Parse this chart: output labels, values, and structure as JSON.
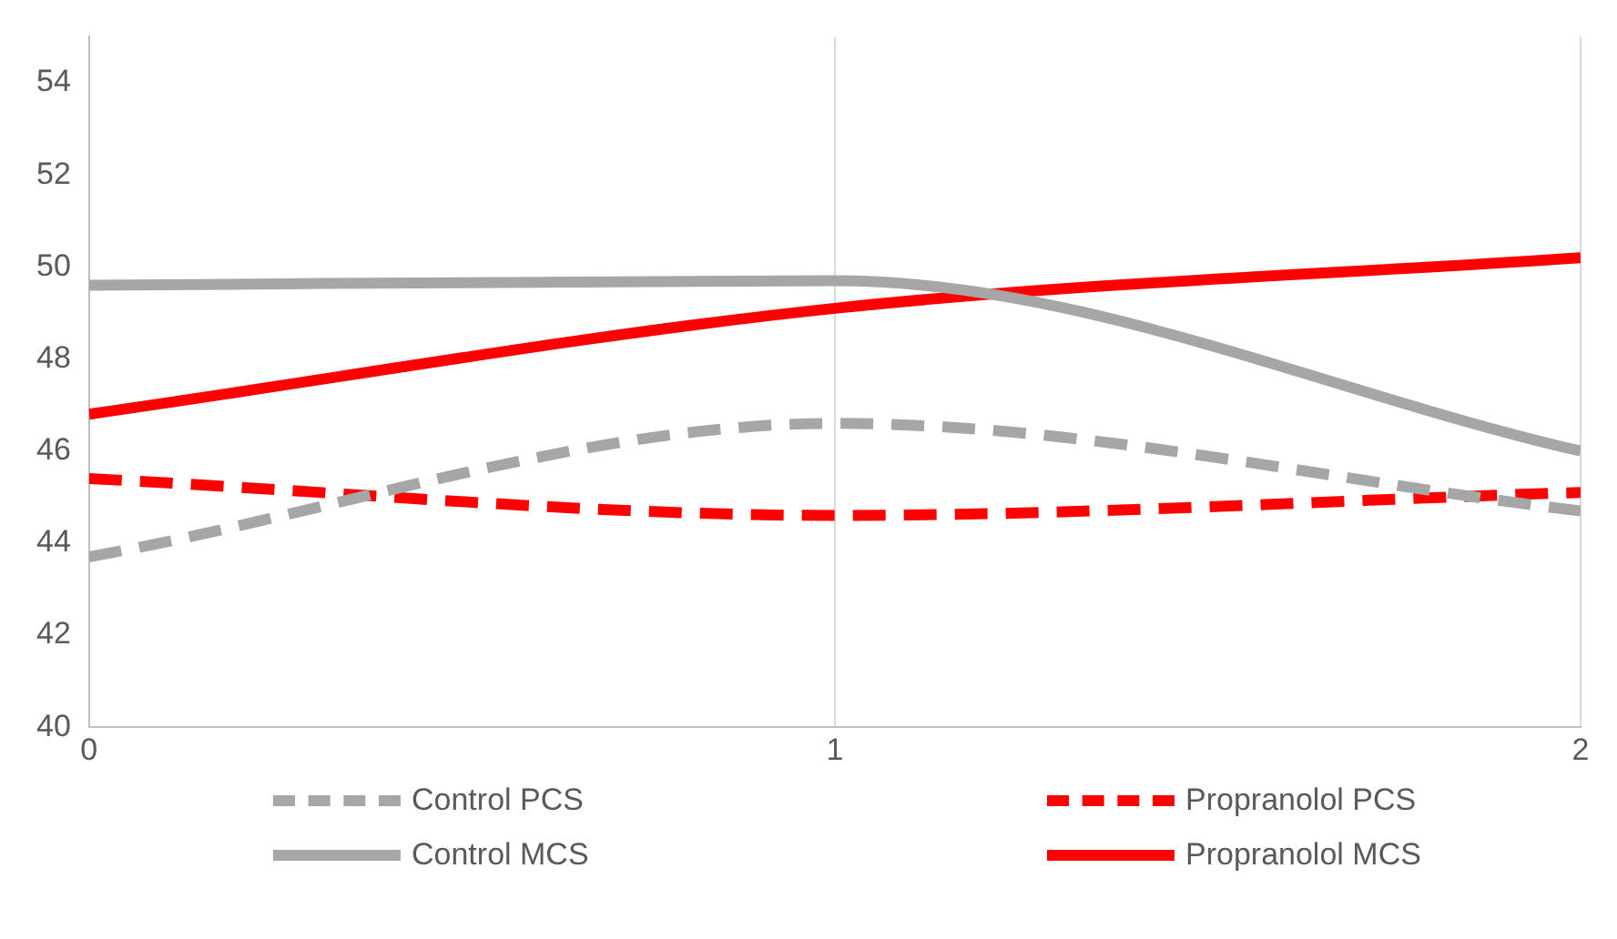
{
  "chart_data": {
    "type": "line",
    "x": [
      0,
      1,
      2
    ],
    "xlim": [
      0,
      2
    ],
    "xticks": [
      0,
      1,
      2
    ],
    "ylim": [
      40,
      55
    ],
    "yticks": [
      40,
      42,
      44,
      46,
      48,
      50,
      52,
      54
    ],
    "grid": "x",
    "legend": "bottom",
    "marker": "none",
    "series": [
      {
        "name": "Control PCS",
        "color": "#a6a6a6",
        "line_style": "dashed",
        "values": [
          43.7,
          46.6,
          44.7
        ]
      },
      {
        "name": "Propranolol PCS",
        "color": "#ff0000",
        "line_style": "dashed",
        "values": [
          45.4,
          44.6,
          45.1
        ]
      },
      {
        "name": "Control MCS",
        "color": "#a6a6a6",
        "line_style": "solid",
        "values": [
          49.6,
          49.7,
          46.0
        ]
      },
      {
        "name": "Propranolol MCS",
        "color": "#ff0000",
        "line_style": "solid",
        "values": [
          46.8,
          49.1,
          50.2
        ]
      }
    ]
  }
}
